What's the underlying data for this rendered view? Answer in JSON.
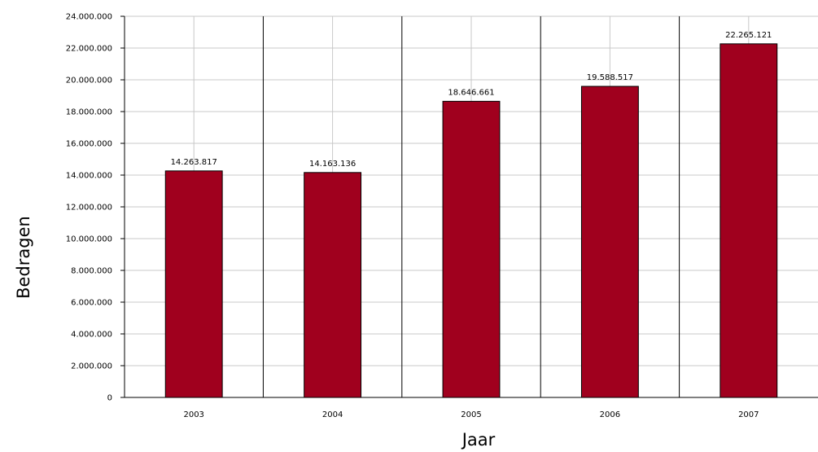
{
  "chart_data": {
    "type": "bar",
    "categories": [
      "2003",
      "2004",
      "2005",
      "2006",
      "2007"
    ],
    "values": [
      14263817,
      14163136,
      18646661,
      19588517,
      22265121
    ],
    "value_labels": [
      "14.263.817",
      "14.163.136",
      "18.646.661",
      "19.588.517",
      "22.265.121"
    ],
    "xlabel": "Jaar",
    "ylabel": "Bedragen",
    "ylim": [
      0,
      24000000
    ],
    "yticks": [
      0,
      2000000,
      4000000,
      6000000,
      8000000,
      10000000,
      12000000,
      14000000,
      16000000,
      18000000,
      20000000,
      22000000,
      24000000
    ],
    "ytick_labels": [
      "0",
      "2.000.000",
      "4.000.000",
      "6.000.000",
      "8.000.000",
      "10.000.000",
      "12.000.000",
      "14.000.000",
      "16.000.000",
      "18.000.000",
      "20.000.000",
      "22.000.000",
      "24.000.000"
    ],
    "bar_color": "#a0001e",
    "grid": true,
    "legend": "none"
  }
}
